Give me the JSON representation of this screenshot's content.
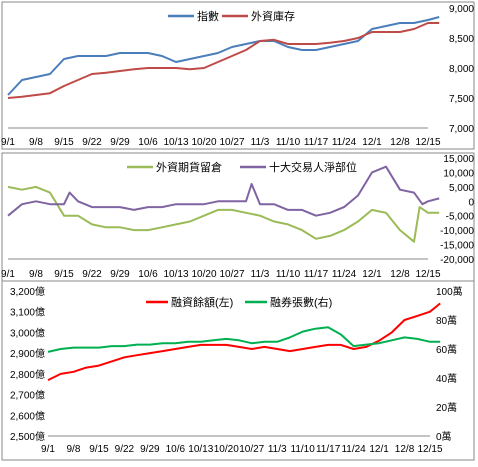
{
  "chart_data": [
    {
      "type": "line",
      "x": [
        "9/1",
        "9/8",
        "9/15",
        "9/22",
        "9/29",
        "10/6",
        "10/13",
        "10/20",
        "10/27",
        "11/3",
        "11/10",
        "11/17",
        "11/24",
        "12/1",
        "12/8",
        "12/15"
      ],
      "series": [
        {
          "name": "指數",
          "color": "#4a7ebb",
          "axis": "left",
          "values": [
            7550,
            7850,
            7850,
            8150,
            8200,
            8250,
            8100,
            8200,
            8350,
            8450,
            8350,
            8300,
            8400,
            8650,
            8750,
            8800
          ],
          "points": [
            [
              0,
              7550
            ],
            [
              0.5,
              7800
            ],
            [
              1,
              7850
            ],
            [
              1.5,
              7900
            ],
            [
              2,
              8150
            ],
            [
              2.5,
              8200
            ],
            [
              3,
              8200
            ],
            [
              3.5,
              8200
            ],
            [
              4,
              8250
            ],
            [
              4.5,
              8250
            ],
            [
              5,
              8250
            ],
            [
              5.5,
              8200
            ],
            [
              6,
              8100
            ],
            [
              6.5,
              8150
            ],
            [
              7,
              8200
            ],
            [
              7.5,
              8250
            ],
            [
              8,
              8350
            ],
            [
              8.5,
              8400
            ],
            [
              9,
              8450
            ],
            [
              9.5,
              8450
            ],
            [
              10,
              8350
            ],
            [
              10.5,
              8300
            ],
            [
              11,
              8300
            ],
            [
              11.5,
              8350
            ],
            [
              12,
              8400
            ],
            [
              12.5,
              8450
            ],
            [
              13,
              8650
            ],
            [
              13.5,
              8700
            ],
            [
              14,
              8750
            ],
            [
              14.5,
              8750
            ],
            [
              15,
              8800
            ],
            [
              15.4,
              8850
            ]
          ]
        },
        {
          "name": "外資庫存",
          "color": "#be4b48",
          "axis": "left",
          "values": [
            7500,
            7550,
            7700,
            7900,
            7950,
            8000,
            8000,
            8000,
            8200,
            8450,
            8400,
            8400,
            8450,
            8600,
            8600,
            8750
          ],
          "points": [
            [
              0,
              7500
            ],
            [
              0.5,
              7520
            ],
            [
              1,
              7550
            ],
            [
              1.5,
              7580
            ],
            [
              2,
              7700
            ],
            [
              2.5,
              7800
            ],
            [
              3,
              7900
            ],
            [
              3.5,
              7920
            ],
            [
              4,
              7950
            ],
            [
              4.5,
              7980
            ],
            [
              5,
              8000
            ],
            [
              5.5,
              8000
            ],
            [
              6,
              8000
            ],
            [
              6.5,
              7980
            ],
            [
              7,
              8000
            ],
            [
              7.5,
              8100
            ],
            [
              8,
              8200
            ],
            [
              8.5,
              8300
            ],
            [
              9,
              8450
            ],
            [
              9.5,
              8470
            ],
            [
              10,
              8400
            ],
            [
              10.5,
              8400
            ],
            [
              11,
              8400
            ],
            [
              11.5,
              8420
            ],
            [
              12,
              8450
            ],
            [
              12.5,
              8500
            ],
            [
              13,
              8600
            ],
            [
              13.5,
              8600
            ],
            [
              14,
              8600
            ],
            [
              14.5,
              8650
            ],
            [
              15,
              8750
            ],
            [
              15.4,
              8750
            ]
          ]
        }
      ],
      "ylim": [
        7000,
        9000
      ],
      "yticks": [
        "7,000",
        "7,500",
        "8,000",
        "8,500",
        "9,000"
      ]
    },
    {
      "type": "line",
      "x": [
        "9/1",
        "9/8",
        "9/15",
        "9/22",
        "9/29",
        "10/6",
        "10/13",
        "10/20",
        "10/27",
        "11/3",
        "11/10",
        "11/17",
        "11/24",
        "12/1",
        "12/8",
        "12/15"
      ],
      "series": [
        {
          "name": "外資期貨留倉",
          "color": "#9bbb59",
          "axis": "right",
          "values": [
            5000,
            4000,
            -5000,
            -8000,
            -9000,
            -10000,
            -8000,
            -5000,
            -3000,
            -5000,
            -8000,
            -13000,
            -10000,
            -3000,
            -10000,
            -3000
          ],
          "points": [
            [
              0,
              5000
            ],
            [
              0.5,
              4000
            ],
            [
              1,
              5000
            ],
            [
              1.5,
              3000
            ],
            [
              2,
              -5000
            ],
            [
              2.5,
              -5000
            ],
            [
              3,
              -8000
            ],
            [
              3.5,
              -9000
            ],
            [
              4,
              -9000
            ],
            [
              4.5,
              -10000
            ],
            [
              5,
              -10000
            ],
            [
              5.5,
              -9000
            ],
            [
              6,
              -8000
            ],
            [
              6.5,
              -7000
            ],
            [
              7,
              -5000
            ],
            [
              7.5,
              -3000
            ],
            [
              8,
              -3000
            ],
            [
              8.5,
              -4000
            ],
            [
              9,
              -5000
            ],
            [
              9.5,
              -7000
            ],
            [
              10,
              -8000
            ],
            [
              10.5,
              -10000
            ],
            [
              11,
              -13000
            ],
            [
              11.5,
              -12000
            ],
            [
              12,
              -10000
            ],
            [
              12.5,
              -7000
            ],
            [
              13,
              -3000
            ],
            [
              13.5,
              -4000
            ],
            [
              14,
              -10000
            ],
            [
              14.5,
              -14000
            ],
            [
              14.7,
              -2000
            ],
            [
              15,
              -4000
            ],
            [
              15.4,
              -4000
            ]
          ]
        },
        {
          "name": "十大交易人淨部位",
          "color": "#8064a2",
          "axis": "right",
          "values": [
            -5000,
            0,
            -1000,
            -2000,
            -2000,
            -2000,
            -1000,
            -1000,
            0,
            -1000,
            -3000,
            -5000,
            -2000,
            10000,
            4000,
            -1000
          ],
          "points": [
            [
              0,
              -5000
            ],
            [
              0.5,
              -1000
            ],
            [
              1,
              0
            ],
            [
              1.5,
              -1000
            ],
            [
              2,
              -1000
            ],
            [
              2.2,
              3000
            ],
            [
              2.5,
              0
            ],
            [
              3,
              -2000
            ],
            [
              3.5,
              -2000
            ],
            [
              4,
              -2000
            ],
            [
              4.5,
              -3000
            ],
            [
              5,
              -2000
            ],
            [
              5.5,
              -2000
            ],
            [
              6,
              -1000
            ],
            [
              6.5,
              -1000
            ],
            [
              7,
              -1000
            ],
            [
              7.5,
              0
            ],
            [
              8,
              0
            ],
            [
              8.5,
              0
            ],
            [
              8.7,
              6000
            ],
            [
              9,
              -1000
            ],
            [
              9.5,
              -1000
            ],
            [
              10,
              -3000
            ],
            [
              10.5,
              -3000
            ],
            [
              11,
              -5000
            ],
            [
              11.5,
              -4000
            ],
            [
              12,
              -2000
            ],
            [
              12.5,
              2000
            ],
            [
              13,
              10000
            ],
            [
              13.5,
              12000
            ],
            [
              14,
              4000
            ],
            [
              14.5,
              3000
            ],
            [
              14.8,
              -1000
            ],
            [
              15,
              0
            ],
            [
              15.4,
              1000
            ]
          ]
        }
      ],
      "ylim": [
        -20000,
        15000
      ],
      "yticks": [
        "-20,000",
        "-15,000",
        "-10,000",
        "-5,000",
        "0",
        "5,000",
        "10,000",
        "15,000"
      ]
    },
    {
      "type": "line",
      "x": [
        "9/1",
        "9/8",
        "9/15",
        "9/22",
        "9/29",
        "10/6",
        "10/13",
        "10/20",
        "10/27",
        "11/3",
        "11/10",
        "11/17",
        "11/24",
        "12/1",
        "12/8",
        "12/15"
      ],
      "series": [
        {
          "name": "融資餘額(左)",
          "color": "#ff0000",
          "axis": "left",
          "values": [
            2780,
            2810,
            2840,
            2880,
            2900,
            2920,
            2940,
            2940,
            2920,
            2920,
            2940,
            2940,
            2920,
            2960,
            3060,
            3100
          ],
          "points": [
            [
              0,
              2770
            ],
            [
              0.5,
              2800
            ],
            [
              1,
              2810
            ],
            [
              1.5,
              2830
            ],
            [
              2,
              2840
            ],
            [
              2.5,
              2860
            ],
            [
              3,
              2880
            ],
            [
              3.5,
              2890
            ],
            [
              4,
              2900
            ],
            [
              4.5,
              2910
            ],
            [
              5,
              2920
            ],
            [
              5.5,
              2930
            ],
            [
              6,
              2940
            ],
            [
              6.5,
              2940
            ],
            [
              7,
              2940
            ],
            [
              7.5,
              2930
            ],
            [
              8,
              2920
            ],
            [
              8.5,
              2930
            ],
            [
              9,
              2920
            ],
            [
              9.5,
              2910
            ],
            [
              10,
              2920
            ],
            [
              10.5,
              2930
            ],
            [
              11,
              2940
            ],
            [
              11.5,
              2940
            ],
            [
              12,
              2920
            ],
            [
              12.5,
              2930
            ],
            [
              13,
              2960
            ],
            [
              13.5,
              3000
            ],
            [
              14,
              3060
            ],
            [
              14.5,
              3080
            ],
            [
              15,
              3100
            ],
            [
              15.4,
              3140
            ]
          ]
        },
        {
          "name": "融券張數(右)",
          "color": "#00b050",
          "axis": "right",
          "values": [
            60,
            61,
            61,
            62,
            63,
            64,
            65,
            67,
            64,
            65,
            72,
            75,
            62,
            64,
            68,
            65
          ],
          "points": [
            [
              0,
              58
            ],
            [
              0.5,
              60
            ],
            [
              1,
              61
            ],
            [
              1.5,
              61
            ],
            [
              2,
              61
            ],
            [
              2.5,
              62
            ],
            [
              3,
              62
            ],
            [
              3.5,
              63
            ],
            [
              4,
              63
            ],
            [
              4.5,
              64
            ],
            [
              5,
              64
            ],
            [
              5.5,
              65
            ],
            [
              6,
              65
            ],
            [
              6.5,
              66
            ],
            [
              7,
              67
            ],
            [
              7.5,
              66
            ],
            [
              8,
              64
            ],
            [
              8.5,
              65
            ],
            [
              9,
              65
            ],
            [
              9.5,
              68
            ],
            [
              10,
              72
            ],
            [
              10.5,
              74
            ],
            [
              11,
              75
            ],
            [
              11.5,
              70
            ],
            [
              12,
              62
            ],
            [
              12.5,
              63
            ],
            [
              13,
              64
            ],
            [
              13.5,
              66
            ],
            [
              14,
              68
            ],
            [
              14.5,
              67
            ],
            [
              15,
              65
            ],
            [
              15.4,
              65
            ]
          ]
        }
      ],
      "ylim_left": [
        2500,
        3200
      ],
      "ylim_right": [
        0,
        100
      ],
      "yticks_left": [
        "2,500億",
        "2,600億",
        "2,700億",
        "2,800億",
        "2,900億",
        "3,000億",
        "3,100億",
        "3,200億"
      ],
      "yticks_right": [
        "0萬",
        "20萬",
        "40萬",
        "60萬",
        "80萬",
        "100萬"
      ]
    }
  ]
}
